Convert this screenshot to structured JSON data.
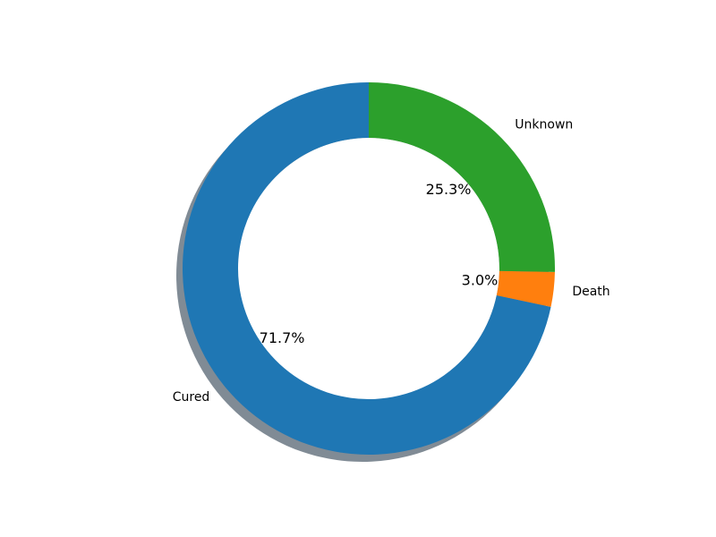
{
  "chart_data": {
    "type": "pie",
    "style": "donut",
    "categories": [
      "Cured",
      "Death",
      "Unknown"
    ],
    "values": [
      71.7,
      3.0,
      25.3
    ],
    "value_labels": [
      "71.7%",
      "3.0%",
      "25.3%"
    ],
    "colors": [
      "#1f77b4",
      "#ff7f0e",
      "#2ca02c"
    ],
    "start_angle_deg": 90,
    "direction": "counterclockwise",
    "shadow": true,
    "legend": "none"
  }
}
